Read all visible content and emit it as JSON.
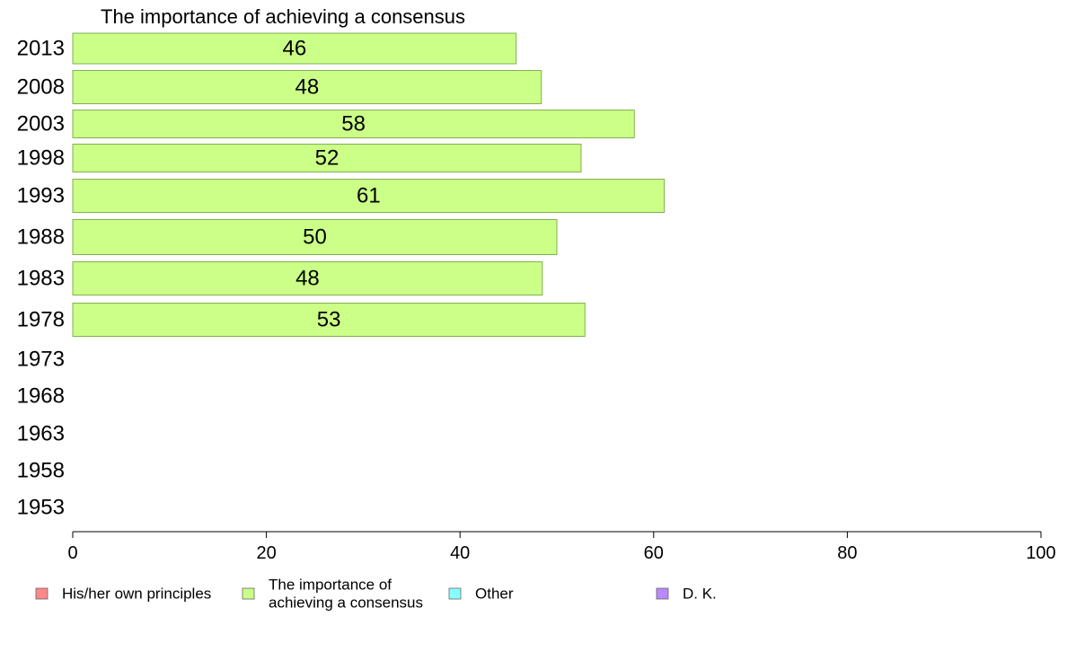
{
  "chart_data": {
    "type": "bar",
    "orientation": "horizontal",
    "title": "The importance of achieving a consensus",
    "categories": [
      "2013",
      "2008",
      "2003",
      "1998",
      "1993",
      "1988",
      "1983",
      "1978",
      "1973",
      "1968",
      "1963",
      "1958",
      "1953"
    ],
    "series": [
      {
        "name": "The importance of achieving a consensus",
        "color": "#ccff88",
        "values": [
          45.8,
          48.4,
          58.0,
          52.5,
          61.1,
          50.0,
          48.5,
          52.9,
          null,
          null,
          null,
          null,
          null
        ],
        "labels": [
          "46",
          "48",
          "58",
          "52",
          "61",
          "50",
          "48",
          "53",
          "",
          "",
          "",
          "",
          ""
        ]
      }
    ],
    "xlim": [
      0,
      100
    ],
    "xticks": [
      "0",
      "20",
      "40",
      "60",
      "80",
      "100"
    ],
    "legend": {
      "placement": "bottom",
      "entries": [
        {
          "lines": [
            "His/her own principles"
          ],
          "color": "#ff8888"
        },
        {
          "lines": [
            "The importance of",
            "achieving a consensus"
          ],
          "color": "#ccff88"
        },
        {
          "lines": [
            "Other"
          ],
          "color": "#88ffff"
        },
        {
          "lines": [
            "D. K."
          ],
          "color": "#bb88ff"
        }
      ]
    },
    "grid": false
  }
}
